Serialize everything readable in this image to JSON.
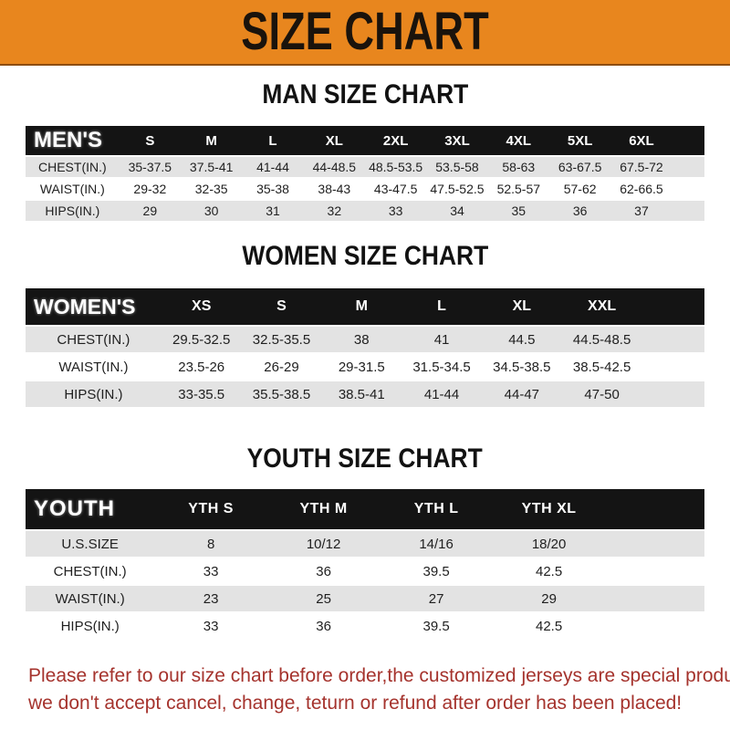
{
  "banner": {
    "title": "SIZE CHART"
  },
  "colors": {
    "banner_bg": "#E8861E",
    "banner_border": "#8d4d10",
    "table_header_bg": "#141414",
    "row_shaded": "#E3E3E3",
    "row_plain": "#FFFFFF",
    "note_text": "#A5332D"
  },
  "sections": [
    {
      "id": "men",
      "heading": "MAN SIZE CHART",
      "table": {
        "title": "MEN'S",
        "sizes": [
          "S",
          "M",
          "L",
          "XL",
          "2XL",
          "3XL",
          "4XL",
          "5XL",
          "6XL"
        ],
        "rows": [
          {
            "label": "CHEST(IN.)",
            "values": [
              "35-37.5",
              "37.5-41",
              "41-44",
              "44-48.5",
              "48.5-53.5",
              "53.5-58",
              "58-63",
              "63-67.5",
              "67.5-72"
            ]
          },
          {
            "label": "WAIST(IN.)",
            "values": [
              "29-32",
              "32-35",
              "35-38",
              "38-43",
              "43-47.5",
              "47.5-52.5",
              "52.5-57",
              "57-62",
              "62-66.5"
            ]
          },
          {
            "label": "HIPS(IN.)",
            "values": [
              "29",
              "30",
              "31",
              "32",
              "33",
              "34",
              "35",
              "36",
              "37"
            ]
          }
        ]
      }
    },
    {
      "id": "women",
      "heading": "WOMEN SIZE CHART",
      "table": {
        "title": "WOMEN'S",
        "sizes": [
          "XS",
          "S",
          "M",
          "L",
          "XL",
          "XXL"
        ],
        "rows": [
          {
            "label": "CHEST(IN.)",
            "values": [
              "29.5-32.5",
              "32.5-35.5",
              "38",
              "41",
              "44.5",
              "44.5-48.5"
            ]
          },
          {
            "label": "WAIST(IN.)",
            "values": [
              "23.5-26",
              "26-29",
              "29-31.5",
              "31.5-34.5",
              "34.5-38.5",
              "38.5-42.5"
            ]
          },
          {
            "label": "HIPS(IN.)",
            "values": [
              "33-35.5",
              "35.5-38.5",
              "38.5-41",
              "41-44",
              "44-47",
              "47-50"
            ]
          }
        ]
      }
    },
    {
      "id": "youth",
      "heading": "YOUTH SIZE CHART",
      "table": {
        "title": "YOUTH",
        "sizes": [
          "YTH S",
          "YTH M",
          "YTH L",
          "YTH XL"
        ],
        "rows": [
          {
            "label": "U.S.SIZE",
            "values": [
              "8",
              "10/12",
              "14/16",
              "18/20"
            ]
          },
          {
            "label": "CHEST(IN.)",
            "values": [
              "33",
              "36",
              "39.5",
              "42.5"
            ]
          },
          {
            "label": "WAIST(IN.)",
            "values": [
              "23",
              "25",
              "27",
              "29"
            ]
          },
          {
            "label": "HIPS(IN.)",
            "values": [
              "33",
              "36",
              "39.5",
              "42.5"
            ]
          }
        ]
      }
    }
  ],
  "note": {
    "lines": [
      "Please refer to our size chart before order,the customized jerseys are special products,",
      "we don't accept cancel, change, teturn or refund after order has been placed!"
    ]
  }
}
